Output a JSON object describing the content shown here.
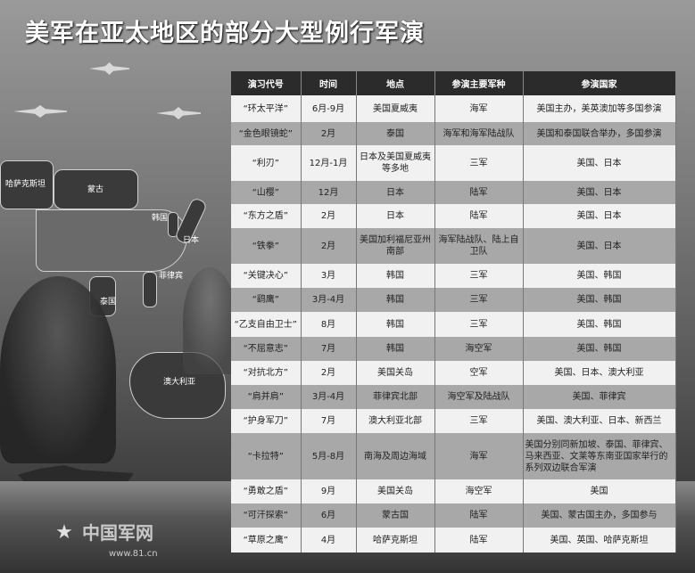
{
  "title": "美军在亚太地区的部分大型例行军演",
  "map_labels": {
    "kazakhstan": "哈萨克斯坦",
    "mongolia": "蒙古",
    "korea": "韩国",
    "japan": "日本",
    "thailand": "泰国",
    "philippines": "菲律宾",
    "australia": "澳大利亚"
  },
  "logo": {
    "name": "中国军网",
    "url": "www.81.cn"
  },
  "table": {
    "headers": [
      "演习代号",
      "时间",
      "地点",
      "参演主要军种",
      "参演国家"
    ],
    "rows": [
      [
        "“环太平洋”",
        "6月-9月",
        "美国夏威夷",
        "海军",
        "美国主办，美英澳加等多国参演"
      ],
      [
        "“金色眼镜蛇”",
        "2月",
        "泰国",
        "海军和海军陆战队",
        "美国和泰国联合举办，多国参演"
      ],
      [
        "“利刃”",
        "12月-1月",
        "日本及美国夏威夷等多地",
        "三军",
        "美国、日本"
      ],
      [
        "“山樱”",
        "12月",
        "日本",
        "陆军",
        "美国、日本"
      ],
      [
        "“东方之盾”",
        "2月",
        "日本",
        "陆军",
        "美国、日本"
      ],
      [
        "“铁拳”",
        "2月",
        "美国加利福尼亚州南部",
        "海军陆战队、陆上自卫队",
        "美国、日本"
      ],
      [
        "“关键决心”",
        "3月",
        "韩国",
        "三军",
        "美国、韩国"
      ],
      [
        "“鹞鹰”",
        "3月-4月",
        "韩国",
        "三军",
        "美国、韩国"
      ],
      [
        "“乙支自由卫士”",
        "8月",
        "韩国",
        "三军",
        "美国、韩国"
      ],
      [
        "“不屈意志”",
        "7月",
        "韩国",
        "海空军",
        "美国、韩国"
      ],
      [
        "“对抗北方”",
        "2月",
        "美国关岛",
        "空军",
        "美国、日本、澳大利亚"
      ],
      [
        "“肩并肩”",
        "3月-4月",
        "菲律宾北部",
        "海空军及陆战队",
        "美国、菲律宾"
      ],
      [
        "“护身军刀”",
        "7月",
        "澳大利亚北部",
        "三军",
        "美国、澳大利亚、日本、新西兰"
      ],
      [
        "“卡拉特”",
        "5月-8月",
        "南海及周边海域",
        "海军",
        "美国分别同新加坡、泰国、菲律宾、马来西亚、文莱等东南亚国家举行的系列双边联合军演"
      ],
      [
        "“勇敢之盾”",
        "9月",
        "美国关岛",
        "海空军",
        "美国"
      ],
      [
        "“可汗探索”",
        "6月",
        "蒙古国",
        "陆军",
        "美国、蒙古国主办，多国参与"
      ],
      [
        "“草原之鹰”",
        "4月",
        "哈萨克斯坦",
        "陆军",
        "美国、英国、哈萨克斯坦"
      ]
    ]
  }
}
